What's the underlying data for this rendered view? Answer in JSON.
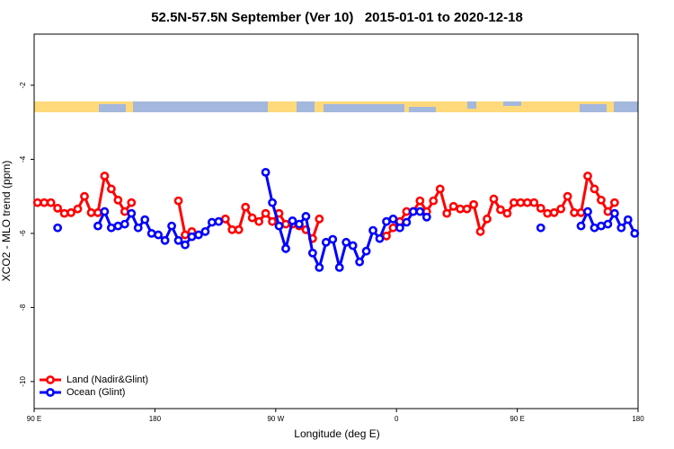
{
  "chart_data": {
    "type": "line",
    "title": "52.5N-57.5N September (Ver 10)   2015-01-01 to 2020-12-18",
    "x_label": "Longitude (deg E)",
    "y_label": "XCO2 - MLO trend (ppm)",
    "xlim": [
      90,
      540
    ],
    "xticks": [
      {
        "value": 90,
        "label": "90 E"
      },
      {
        "value": 180,
        "label": "180"
      },
      {
        "value": 270,
        "label": "90 W"
      },
      {
        "value": 360,
        "label": "0"
      },
      {
        "value": 450,
        "label": "90 E"
      },
      {
        "value": 540,
        "label": "180"
      }
    ],
    "ylim": [
      -10.73,
      -0.62
    ],
    "yticks": [
      -2,
      -4,
      -6,
      -8,
      -10
    ],
    "legend": "bottom-left",
    "x": [
      92.5,
      97.5,
      102.5,
      107.5,
      112.5,
      117.5,
      122.5,
      127.5,
      132.5,
      137.5,
      142.5,
      147.5,
      152.5,
      157.5,
      162.5,
      167.5,
      172.5,
      177.5,
      182.5,
      187.5,
      192.5,
      197.5,
      202.5,
      207.5,
      212.5,
      217.5,
      222.5,
      227.5,
      232.5,
      237.5,
      242.5,
      247.5,
      252.5,
      257.5,
      262.5,
      267.5,
      272.5,
      277.5,
      282.5,
      287.5,
      292.5,
      297.5,
      302.5,
      307.5,
      312.5,
      317.5,
      322.5,
      327.5,
      332.5,
      337.5,
      342.5,
      347.5,
      352.5,
      357.5,
      362.5,
      367.5,
      372.5,
      377.5,
      382.5,
      387.5,
      392.5,
      397.5,
      402.5,
      407.5,
      412.5,
      417.5,
      422.5,
      427.5,
      432.5,
      437.5,
      442.5,
      447.5,
      452.5,
      457.5,
      462.5,
      467.5,
      472.5,
      477.5,
      482.5,
      487.5,
      492.5,
      497.5,
      502.5,
      507.5,
      512.5,
      517.5,
      522.5,
      527.5,
      532.5,
      537.5
    ],
    "series": [
      {
        "name": "Land (Nadir&Glint)",
        "color": "#ff0000",
        "values": [
          -5.17,
          -5.17,
          -5.17,
          -5.32,
          -5.46,
          -5.44,
          -5.34,
          -5.0,
          -5.44,
          -5.44,
          -4.45,
          -4.8,
          -5.1,
          -5.41,
          -5.17,
          null,
          null,
          null,
          null,
          null,
          null,
          -5.12,
          -6.04,
          -5.95,
          null,
          null,
          null,
          null,
          -5.61,
          -5.9,
          -5.9,
          -5.29,
          -5.58,
          -5.68,
          -5.46,
          -5.68,
          -5.46,
          -5.75,
          -5.75,
          -5.8,
          -5.9,
          -6.14,
          -5.61,
          null,
          null,
          null,
          null,
          null,
          null,
          null,
          null,
          null,
          -6.07,
          -5.85,
          -5.68,
          -5.41,
          -5.41,
          -5.12,
          -5.41,
          -5.12,
          -4.8,
          -5.46,
          -5.27,
          -5.34,
          -5.34,
          -5.22,
          -5.95,
          -5.61,
          -5.07,
          -5.36,
          -5.46,
          -5.17,
          -5.17,
          -5.17,
          -5.17,
          -5.32,
          -5.46,
          -5.44,
          -5.34,
          -5.0,
          -5.44,
          -5.44,
          -4.45,
          -4.8,
          -5.1,
          -5.41,
          -5.17,
          null,
          null,
          null
        ]
      },
      {
        "name": "Ocean (Glint)",
        "color": "#0000ff",
        "values": [
          null,
          null,
          null,
          -5.85,
          null,
          null,
          null,
          null,
          null,
          -5.8,
          -5.41,
          -5.85,
          -5.8,
          -5.75,
          -5.46,
          -5.85,
          -5.63,
          -6.0,
          -6.04,
          -6.19,
          -5.8,
          -6.19,
          -6.31,
          -6.09,
          -6.04,
          -5.95,
          -5.7,
          -5.68,
          null,
          null,
          null,
          null,
          null,
          null,
          -4.35,
          -5.17,
          -5.8,
          -6.41,
          -5.66,
          -5.75,
          -5.54,
          -6.53,
          -6.92,
          -6.24,
          -6.16,
          -6.92,
          -6.24,
          -6.33,
          -6.77,
          -6.48,
          -5.92,
          -6.14,
          -5.68,
          -5.61,
          -5.85,
          -5.7,
          -5.41,
          -5.41,
          -5.56,
          null,
          null,
          null,
          null,
          null,
          null,
          null,
          null,
          null,
          null,
          null,
          null,
          null,
          null,
          null,
          null,
          -5.85,
          null,
          null,
          null,
          null,
          null,
          -5.8,
          -5.41,
          -5.85,
          -5.8,
          -5.75,
          -5.46,
          -5.85,
          -5.63,
          -6.0
        ]
      }
    ]
  }
}
